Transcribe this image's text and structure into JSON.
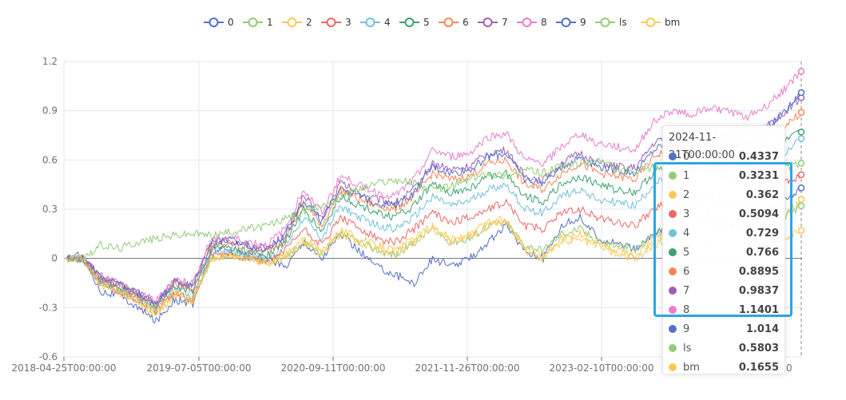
{
  "chart_data": {
    "type": "line",
    "x_labels": [
      "2018-04-25T00:00:00",
      "2019-07-05T00:00:00",
      "2020-09-11T00:00:00",
      "2021-11-26T00:00:00",
      "2023-02-10T00:00:00"
    ],
    "x_last_label_partial": "0",
    "x_range": [
      "2018-04-25",
      "2024-11-21"
    ],
    "ylim": [
      -0.6,
      1.2
    ],
    "y_ticks": [
      "-0.6",
      "-0.3",
      "0",
      "0.3",
      "0.6",
      "0.9",
      "1.2"
    ],
    "grid": true,
    "legend_position": "top-center",
    "series": [
      {
        "name": "0",
        "color": "#5470c6",
        "values": [
          0,
          0.02,
          -0.2,
          -0.22,
          -0.3,
          -0.38,
          -0.25,
          -0.28,
          0.06,
          0.05,
          0.02,
          0.0,
          -0.05,
          0.1,
          0.0,
          0.15,
          0.05,
          -0.05,
          -0.1,
          -0.15,
          0.0,
          -0.05,
          0.0,
          0.1,
          0.2,
          0.05,
          0.0,
          0.2,
          0.25,
          0.12,
          0.1,
          0.05,
          0.15,
          0.22,
          0.2,
          0.25,
          0.2,
          0.18,
          0.28,
          0.35,
          0.43
        ]
      },
      {
        "name": "1",
        "color": "#91cc75",
        "values": [
          0,
          0.0,
          -0.15,
          -0.2,
          -0.25,
          -0.32,
          -0.2,
          -0.25,
          0.0,
          0.02,
          0.0,
          -0.02,
          0.02,
          0.1,
          0.02,
          0.15,
          0.1,
          0.05,
          0.02,
          0.1,
          0.18,
          0.1,
          0.12,
          0.2,
          0.22,
          0.08,
          0.05,
          0.15,
          0.18,
          0.1,
          0.08,
          0.05,
          0.15,
          0.18,
          0.18,
          0.2,
          0.15,
          0.12,
          0.2,
          0.25,
          0.32
        ]
      },
      {
        "name": "2",
        "color": "#fac858",
        "values": [
          0,
          0.0,
          -0.16,
          -0.21,
          -0.26,
          -0.34,
          -0.22,
          -0.27,
          0.0,
          0.02,
          0.0,
          -0.03,
          0.02,
          0.12,
          0.04,
          0.18,
          0.12,
          0.08,
          0.05,
          0.12,
          0.2,
          0.12,
          0.14,
          0.22,
          0.24,
          0.06,
          0.02,
          0.12,
          0.15,
          0.1,
          0.05,
          0.02,
          0.12,
          0.16,
          0.15,
          0.18,
          0.1,
          0.08,
          0.18,
          0.25,
          0.36
        ]
      },
      {
        "name": "3",
        "color": "#ee6666",
        "values": [
          0,
          0.0,
          -0.15,
          -0.2,
          -0.25,
          -0.32,
          -0.2,
          -0.25,
          0.02,
          0.03,
          0.0,
          -0.02,
          0.05,
          0.18,
          0.08,
          0.25,
          0.18,
          0.12,
          0.1,
          0.18,
          0.28,
          0.22,
          0.25,
          0.3,
          0.35,
          0.2,
          0.18,
          0.28,
          0.3,
          0.25,
          0.22,
          0.2,
          0.3,
          0.35,
          0.32,
          0.38,
          0.32,
          0.3,
          0.4,
          0.45,
          0.51
        ]
      },
      {
        "name": "4",
        "color": "#73c0de",
        "values": [
          0,
          0.0,
          -0.14,
          -0.19,
          -0.24,
          -0.3,
          -0.18,
          -0.22,
          0.04,
          0.05,
          0.02,
          0.0,
          0.08,
          0.25,
          0.12,
          0.32,
          0.25,
          0.2,
          0.18,
          0.25,
          0.38,
          0.32,
          0.35,
          0.42,
          0.45,
          0.3,
          0.28,
          0.38,
          0.42,
          0.36,
          0.34,
          0.32,
          0.45,
          0.5,
          0.48,
          0.52,
          0.5,
          0.48,
          0.55,
          0.62,
          0.73
        ]
      },
      {
        "name": "5",
        "color": "#3ba272",
        "values": [
          0,
          0.0,
          -0.13,
          -0.18,
          -0.23,
          -0.29,
          -0.17,
          -0.2,
          0.06,
          0.07,
          0.04,
          0.02,
          0.1,
          0.3,
          0.16,
          0.38,
          0.32,
          0.28,
          0.25,
          0.32,
          0.45,
          0.4,
          0.42,
          0.5,
          0.52,
          0.38,
          0.35,
          0.45,
          0.5,
          0.45,
          0.42,
          0.4,
          0.52,
          0.58,
          0.55,
          0.6,
          0.58,
          0.56,
          0.62,
          0.7,
          0.77
        ]
      },
      {
        "name": "6",
        "color": "#fc8452",
        "values": [
          0,
          0.0,
          -0.12,
          -0.17,
          -0.22,
          -0.28,
          -0.15,
          -0.18,
          0.08,
          0.09,
          0.06,
          0.04,
          0.12,
          0.34,
          0.2,
          0.42,
          0.36,
          0.32,
          0.3,
          0.38,
          0.52,
          0.48,
          0.5,
          0.58,
          0.6,
          0.45,
          0.42,
          0.52,
          0.58,
          0.52,
          0.5,
          0.48,
          0.62,
          0.68,
          0.65,
          0.7,
          0.68,
          0.65,
          0.72,
          0.8,
          0.89
        ]
      },
      {
        "name": "7",
        "color": "#9a60b4",
        "values": [
          0,
          0.0,
          -0.11,
          -0.16,
          -0.21,
          -0.27,
          -0.14,
          -0.16,
          0.1,
          0.11,
          0.08,
          0.06,
          0.15,
          0.38,
          0.24,
          0.46,
          0.4,
          0.36,
          0.34,
          0.42,
          0.58,
          0.54,
          0.56,
          0.64,
          0.66,
          0.5,
          0.48,
          0.58,
          0.64,
          0.58,
          0.56,
          0.55,
          0.7,
          0.76,
          0.74,
          0.78,
          0.76,
          0.74,
          0.8,
          0.88,
          0.98
        ]
      },
      {
        "name": "8",
        "color": "#ea7ccc",
        "values": [
          0,
          0.0,
          -0.1,
          -0.15,
          -0.2,
          -0.26,
          -0.13,
          -0.15,
          0.12,
          0.13,
          0.1,
          0.08,
          0.18,
          0.42,
          0.28,
          0.5,
          0.45,
          0.4,
          0.38,
          0.48,
          0.66,
          0.62,
          0.64,
          0.74,
          0.76,
          0.6,
          0.58,
          0.68,
          0.76,
          0.7,
          0.68,
          0.66,
          0.84,
          0.9,
          0.88,
          0.92,
          0.9,
          0.86,
          0.92,
          1.02,
          1.14
        ]
      },
      {
        "name": "9",
        "color": "#5470c6",
        "values": [
          0,
          0.0,
          -0.11,
          -0.16,
          -0.21,
          -0.27,
          -0.14,
          -0.17,
          0.1,
          0.11,
          0.08,
          0.05,
          0.14,
          0.36,
          0.22,
          0.44,
          0.38,
          0.34,
          0.32,
          0.4,
          0.56,
          0.52,
          0.54,
          0.62,
          0.64,
          0.48,
          0.46,
          0.56,
          0.62,
          0.56,
          0.54,
          0.52,
          0.66,
          0.72,
          0.7,
          0.74,
          0.72,
          0.7,
          0.78,
          0.88,
          1.01
        ]
      },
      {
        "name": "ls",
        "color": "#91cc75",
        "values": [
          0,
          0.0,
          0.08,
          0.06,
          0.1,
          0.12,
          0.14,
          0.15,
          0.14,
          0.16,
          0.18,
          0.2,
          0.24,
          0.28,
          0.32,
          0.38,
          0.42,
          0.46,
          0.48,
          0.46,
          0.42,
          0.44,
          0.48,
          0.52,
          0.5,
          0.54,
          0.52,
          0.56,
          0.58,
          0.6,
          0.54,
          0.52,
          0.56,
          0.54,
          0.58,
          0.52,
          0.48,
          0.52,
          0.5,
          0.55,
          0.58
        ]
      },
      {
        "name": "bm",
        "color": "#fac858",
        "values": [
          0,
          0.0,
          -0.15,
          -0.2,
          -0.26,
          -0.33,
          -0.21,
          -0.26,
          0.0,
          0.02,
          0.0,
          -0.03,
          0.0,
          0.1,
          0.03,
          0.15,
          0.1,
          0.05,
          0.03,
          0.1,
          0.18,
          0.1,
          0.12,
          0.2,
          0.22,
          0.05,
          0.0,
          0.1,
          0.12,
          0.08,
          0.03,
          0.0,
          0.08,
          0.12,
          0.1,
          0.12,
          0.05,
          0.02,
          0.08,
          0.12,
          0.17
        ]
      }
    ]
  },
  "tooltip": {
    "title": "2024-11-21T00:00:00",
    "rows": [
      {
        "name": "0",
        "value": "0.4337",
        "color": "#5470c6"
      },
      {
        "name": "1",
        "value": "0.3231",
        "color": "#91cc75"
      },
      {
        "name": "2",
        "value": "0.362",
        "color": "#fac858"
      },
      {
        "name": "3",
        "value": "0.5094",
        "color": "#ee6666"
      },
      {
        "name": "4",
        "value": "0.729",
        "color": "#73c0de"
      },
      {
        "name": "5",
        "value": "0.766",
        "color": "#3ba272"
      },
      {
        "name": "6",
        "value": "0.8895",
        "color": "#fc8452"
      },
      {
        "name": "7",
        "value": "0.9837",
        "color": "#9a60b4"
      },
      {
        "name": "8",
        "value": "1.1401",
        "color": "#ea7ccc"
      },
      {
        "name": "9",
        "value": "1.014",
        "color": "#5470c6"
      },
      {
        "name": "ls",
        "value": "0.5803",
        "color": "#91cc75"
      },
      {
        "name": "bm",
        "value": "0.1655",
        "color": "#fac858"
      }
    ]
  },
  "highlight_color": "#2aa7e4"
}
